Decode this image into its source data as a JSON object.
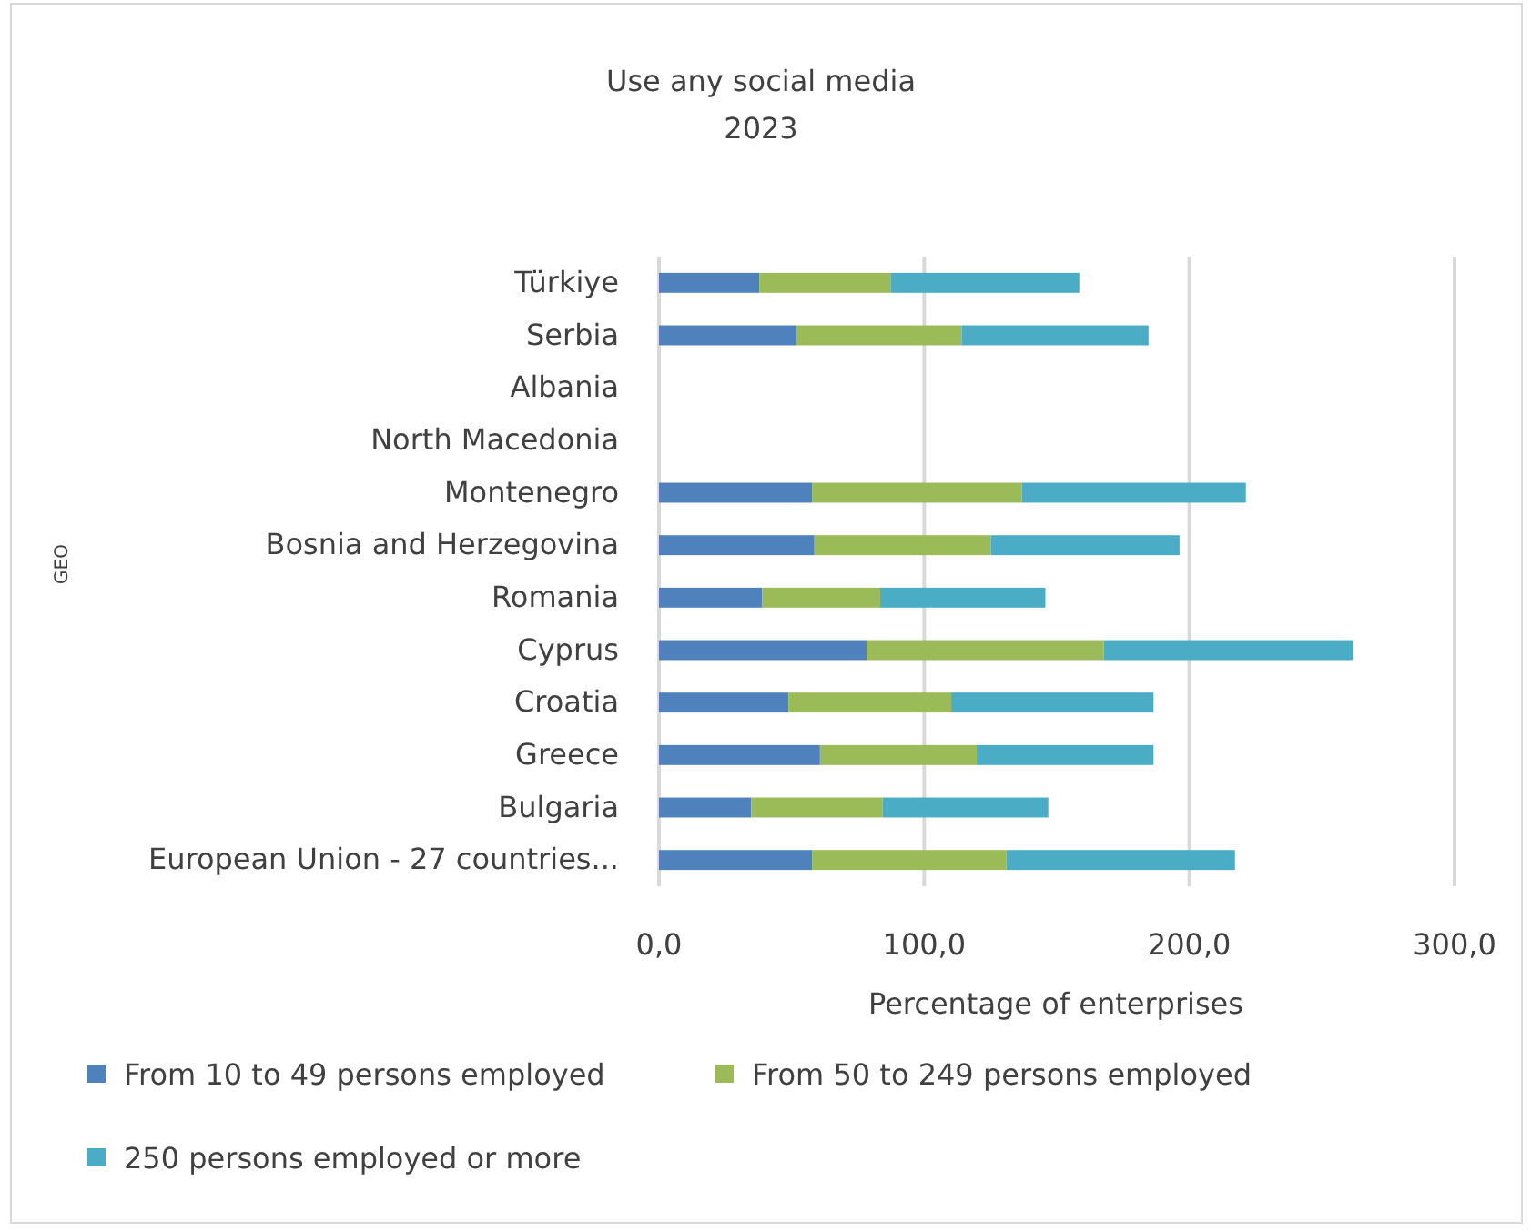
{
  "chart_data": {
    "type": "bar",
    "orientation": "horizontal",
    "stacked": true,
    "title": "Use any social media",
    "subtitle": "2023",
    "xlabel": "Percentage of enterprises",
    "ylabel": "GEO",
    "categories": [
      "Türkiye",
      "Serbia",
      "Albania",
      "North Macedonia",
      "Montenegro",
      "Bosnia and Herzegovina",
      "Romania",
      "Cyprus",
      "Croatia",
      "Greece",
      "Bulgaria",
      "European Union - 27 countries..."
    ],
    "series": [
      {
        "name": "From 10 to 49 persons employed",
        "color": "#4f81bd",
        "values": [
          37.8,
          51.8,
          null,
          null,
          57.7,
          58.6,
          38.9,
          78.3,
          48.8,
          60.7,
          34.8,
          57.7
        ]
      },
      {
        "name": "From 50 to 249 persons employed",
        "color": "#9bbb59",
        "values": [
          49.5,
          62.3,
          null,
          null,
          79.1,
          66.5,
          44.5,
          89.4,
          61.4,
          59.1,
          49.5,
          73.3
        ]
      },
      {
        "name": "250 persons employed or more",
        "color": "#4bacc6",
        "values": [
          71.2,
          70.5,
          null,
          null,
          84.5,
          71.2,
          62.3,
          93.9,
          76.3,
          66.7,
          62.5,
          86.2
        ]
      }
    ],
    "xlim": [
      0,
      300
    ],
    "xticks": [
      {
        "value": 0,
        "label": "0,0"
      },
      {
        "value": 100,
        "label": "100,0"
      },
      {
        "value": 200,
        "label": "200,0"
      },
      {
        "value": 300,
        "label": "300,0"
      }
    ],
    "grid": "x",
    "legend": "bottom"
  }
}
